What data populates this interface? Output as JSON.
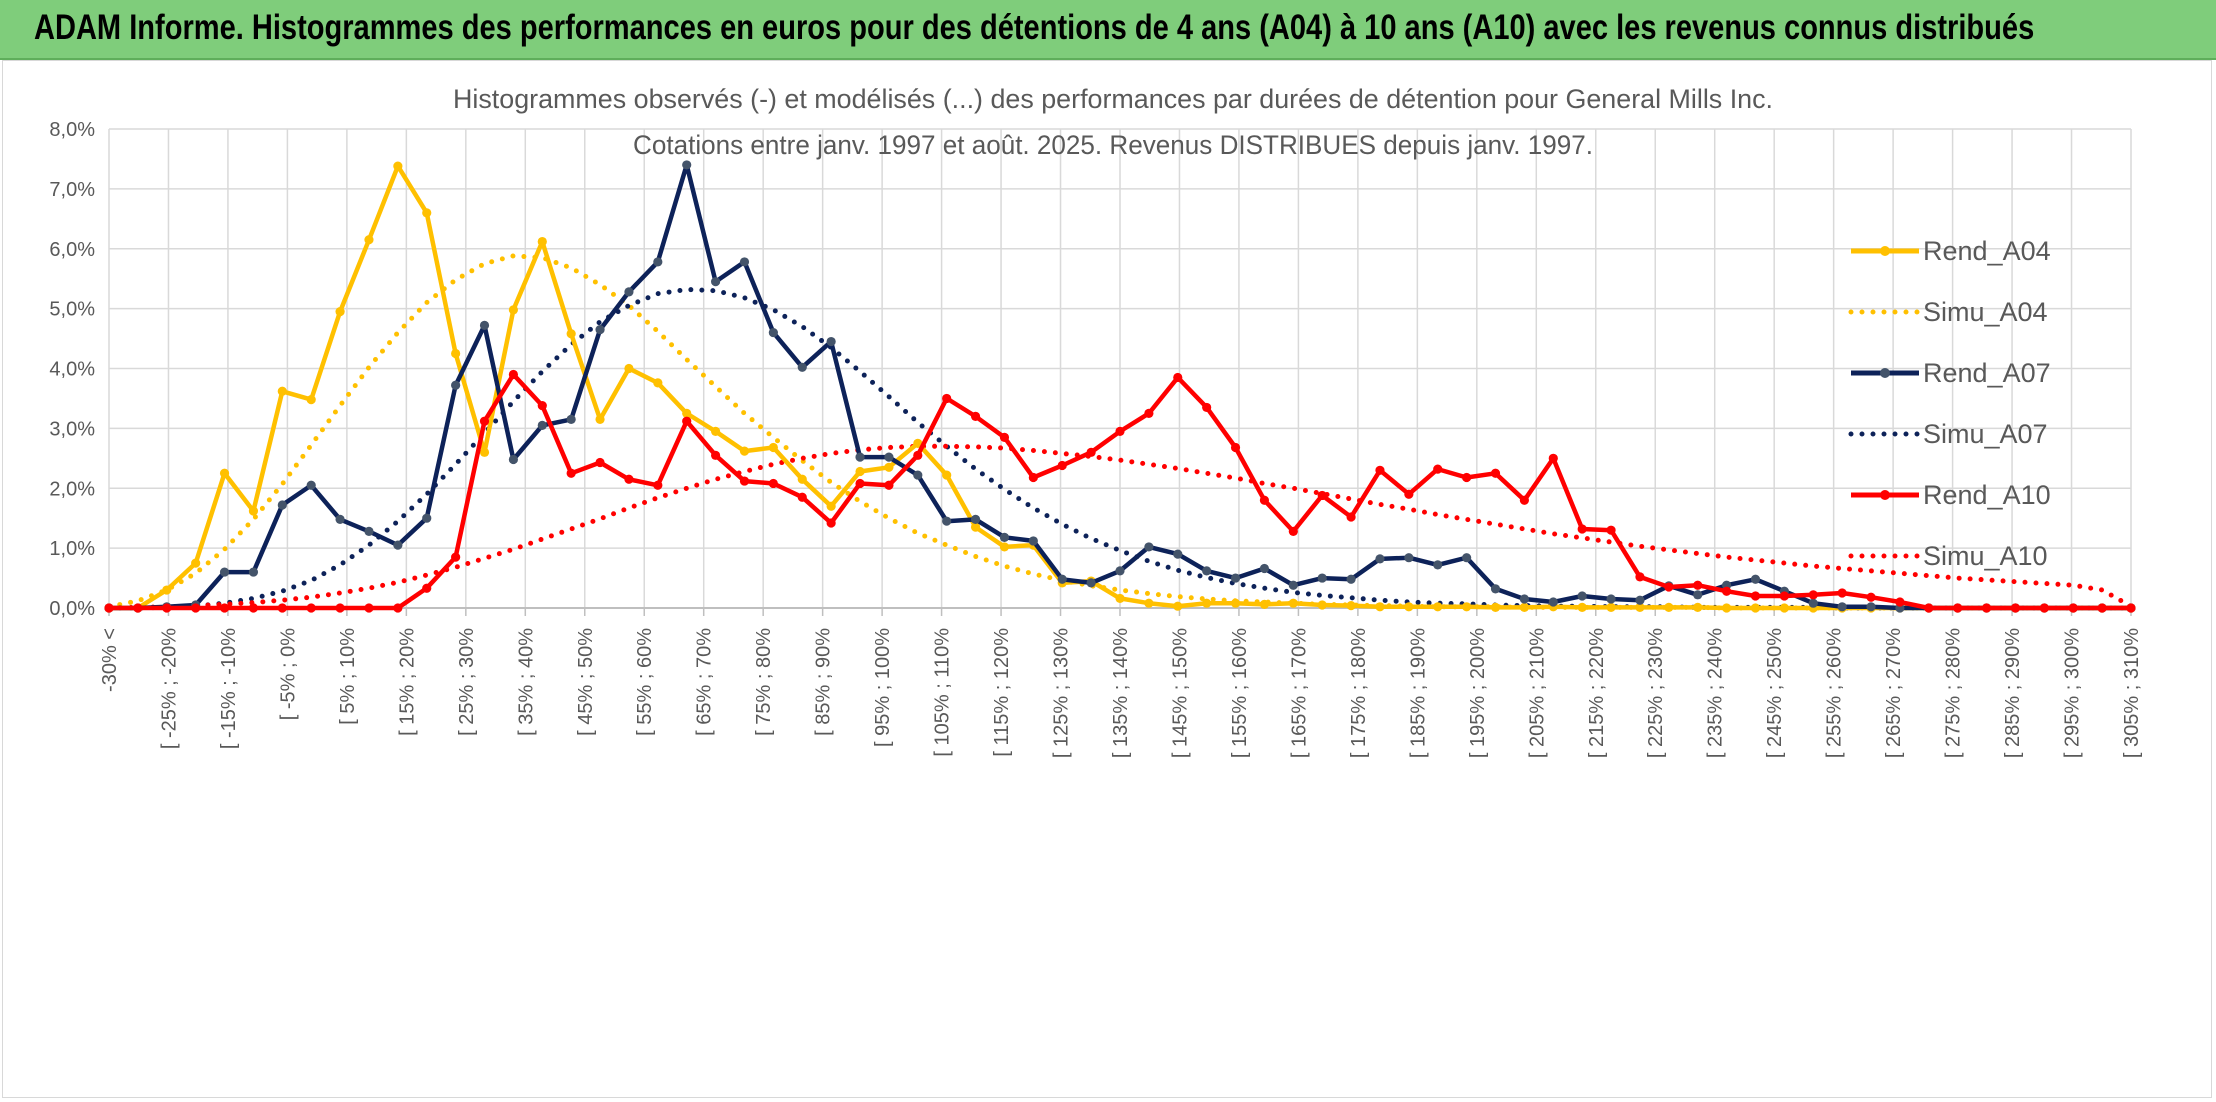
{
  "banner": {
    "title": "ADAM Informe. Histogrammes des performances en euros pour des détentions de 4 ans (A04) à 10 ans (A10) avec les revenus connus distribués"
  },
  "chart_data": {
    "type": "line",
    "title": "Histogrammes observés (-) et modélisés (...) des performances par durées de détention pour General Mills Inc.",
    "subtitle": "Cotations entre janv. 1997 et août. 2025. Revenus DISTRIBUES depuis janv. 1997.",
    "xlabel": "",
    "ylabel": "",
    "ylim": [
      0,
      8
    ],
    "y_ticks": [
      "0,0%",
      "1,0%",
      "2,0%",
      "3,0%",
      "4,0%",
      "5,0%",
      "6,0%",
      "7,0%",
      "8,0%"
    ],
    "grid": true,
    "legend_position": "right",
    "x_tick_labels": [
      "-30% <",
      "[ -25% ; -20%",
      "[ -15% ; -10%",
      "[ -5% ; 0%",
      "[ 5% ; 10%",
      "[ 15% ; 20%",
      "[ 25% ; 30%",
      "[ 35% ; 40%",
      "[ 45% ; 50%",
      "[ 55% ; 60%",
      "[ 65% ; 70%",
      "[ 75% ; 80%",
      "[ 85% ; 90%",
      "[ 95% ; 100%",
      "[ 105% ; 110%",
      "[ 115% ; 120%",
      "[ 125% ; 130%",
      "[ 135% ; 140%",
      "[ 145% ; 150%",
      "[ 155% ; 160%",
      "[ 165% ; 170%",
      "[ 175% ; 180%",
      "[ 185% ; 190%",
      "[ 195% ; 200%",
      "[ 205% ; 210%",
      "[ 215% ; 220%",
      "[ 225% ; 230%",
      "[ 235% ; 240%",
      "[ 245% ; 250%",
      "[ 255% ; 260%",
      "[ 265% ; 270%",
      "[ 275% ; 280%",
      "[ 285% ; 290%",
      "[ 295% ; 300%",
      "[ 305% ; 310%"
    ],
    "series": [
      {
        "name": "Rend_A04",
        "color": "#ffc000",
        "style": "solid",
        "markers": true,
        "values": [
          0,
          0,
          0.3,
          0.75,
          2.25,
          1.62,
          3.62,
          3.48,
          4.95,
          6.15,
          7.38,
          6.6,
          4.25,
          2.6,
          4.98,
          6.12,
          4.58,
          3.15,
          4.0,
          3.76,
          3.25,
          2.95,
          2.62,
          2.68,
          2.15,
          1.7,
          2.28,
          2.35,
          2.75,
          2.22,
          1.35,
          1.02,
          1.05,
          0.42,
          0.45,
          0.16,
          0.08,
          0.03,
          0.08,
          0.08,
          0.06,
          0.08,
          0.05,
          0.04,
          0.02,
          0.02,
          0.02,
          0.02,
          0.01,
          0.01,
          0.02,
          0.01,
          0.01,
          0.01,
          0.01,
          0.01,
          0,
          0,
          0,
          0,
          0,
          0,
          0,
          0,
          0,
          0,
          0,
          0,
          0,
          0,
          0
        ]
      },
      {
        "name": "Simu_A04",
        "color": "#ffc000",
        "style": "dotted",
        "markers": false,
        "values": [
          0.02,
          0.12,
          0.3,
          0.58,
          0.98,
          1.48,
          2.07,
          2.72,
          3.38,
          4.02,
          4.6,
          5.1,
          5.48,
          5.75,
          5.88,
          5.85,
          5.68,
          5.4,
          5.05,
          4.62,
          4.15,
          3.7,
          3.25,
          2.85,
          2.46,
          2.1,
          1.78,
          1.5,
          1.25,
          1.05,
          0.86,
          0.7,
          0.57,
          0.46,
          0.37,
          0.3,
          0.24,
          0.19,
          0.15,
          0.12,
          0.1,
          0.08,
          0.06,
          0.05,
          0.04,
          0.03,
          0.02,
          0.02,
          0.02,
          0.01,
          0.01,
          0.01,
          0.01,
          0.01,
          0.01,
          0.01,
          0,
          0,
          0,
          0,
          0,
          0,
          0,
          0,
          0,
          0,
          0,
          0,
          0,
          0,
          0
        ]
      },
      {
        "name": "Rend_A07",
        "color": "#0d2259",
        "style": "solid",
        "markers": true,
        "values": [
          0,
          0,
          0.02,
          0.05,
          0.6,
          0.6,
          1.72,
          2.05,
          1.48,
          1.28,
          1.05,
          1.5,
          3.72,
          4.72,
          2.48,
          3.05,
          3.15,
          4.65,
          5.28,
          5.78,
          7.4,
          5.45,
          5.78,
          4.6,
          4.02,
          4.45,
          2.52,
          2.52,
          2.22,
          1.45,
          1.48,
          1.18,
          1.12,
          0.48,
          0.42,
          0.62,
          1.02,
          0.9,
          0.62,
          0.5,
          0.66,
          0.38,
          0.5,
          0.48,
          0.82,
          0.84,
          0.72,
          0.84,
          0.32,
          0.15,
          0.1,
          0.2,
          0.15,
          0.13,
          0.37,
          0.22,
          0.38,
          0.48,
          0.28,
          0.08,
          0.02,
          0.02,
          0,
          0,
          0,
          0,
          0,
          0,
          0,
          0,
          0
        ]
      },
      {
        "name": "Simu_A07",
        "color": "#0d2259",
        "style": "dotted",
        "markers": false,
        "values": [
          0,
          0,
          0.01,
          0.03,
          0.08,
          0.16,
          0.28,
          0.46,
          0.72,
          1.05,
          1.45,
          1.9,
          2.4,
          2.92,
          3.45,
          3.95,
          4.4,
          4.78,
          5.05,
          5.25,
          5.32,
          5.3,
          5.18,
          4.98,
          4.7,
          4.35,
          3.95,
          3.53,
          3.1,
          2.7,
          2.32,
          1.98,
          1.67,
          1.4,
          1.16,
          0.96,
          0.78,
          0.63,
          0.51,
          0.41,
          0.33,
          0.26,
          0.21,
          0.17,
          0.13,
          0.1,
          0.08,
          0.07,
          0.05,
          0.04,
          0.03,
          0.03,
          0.02,
          0.02,
          0.02,
          0.01,
          0.01,
          0.01,
          0.01,
          0.01,
          0,
          0,
          0,
          0,
          0,
          0,
          0,
          0,
          0,
          0,
          0
        ]
      },
      {
        "name": "Rend_A10",
        "color": "#ff0000",
        "style": "solid",
        "markers": true,
        "values": [
          0,
          0,
          0,
          0,
          0,
          0,
          0,
          0,
          0,
          0,
          0,
          0.33,
          0.85,
          3.12,
          3.9,
          3.38,
          2.25,
          2.43,
          2.15,
          2.05,
          3.12,
          2.55,
          2.12,
          2.08,
          1.85,
          1.42,
          2.08,
          2.05,
          2.55,
          3.5,
          3.2,
          2.85,
          2.18,
          2.38,
          2.6,
          2.95,
          3.25,
          3.85,
          3.35,
          2.68,
          1.8,
          1.28,
          1.88,
          1.52,
          2.3,
          1.9,
          2.32,
          2.18,
          2.25,
          1.8,
          2.5,
          1.32,
          1.3,
          0.52,
          0.35,
          0.38,
          0.28,
          0.2,
          0.2,
          0.22,
          0.25,
          0.18,
          0.1,
          0,
          0,
          0,
          0,
          0,
          0,
          0,
          0
        ]
      },
      {
        "name": "Simu_A10",
        "color": "#ff0000",
        "style": "dotted",
        "markers": false,
        "values": [
          0,
          0.01,
          0.02,
          0.04,
          0.06,
          0.09,
          0.13,
          0.18,
          0.25,
          0.33,
          0.43,
          0.55,
          0.68,
          0.83,
          0.98,
          1.15,
          1.32,
          1.49,
          1.67,
          1.84,
          2.0,
          2.15,
          2.28,
          2.4,
          2.5,
          2.58,
          2.64,
          2.68,
          2.7,
          2.7,
          2.69,
          2.67,
          2.63,
          2.58,
          2.53,
          2.47,
          2.4,
          2.33,
          2.25,
          2.17,
          2.08,
          2.0,
          1.91,
          1.82,
          1.73,
          1.65,
          1.56,
          1.48,
          1.4,
          1.32,
          1.24,
          1.17,
          1.1,
          1.03,
          0.97,
          0.91,
          0.85,
          0.8,
          0.75,
          0.7,
          0.66,
          0.62,
          0.58,
          0.54,
          0.5,
          0.47,
          0.44,
          0.41,
          0.38,
          0.3,
          0.03
        ]
      }
    ]
  }
}
